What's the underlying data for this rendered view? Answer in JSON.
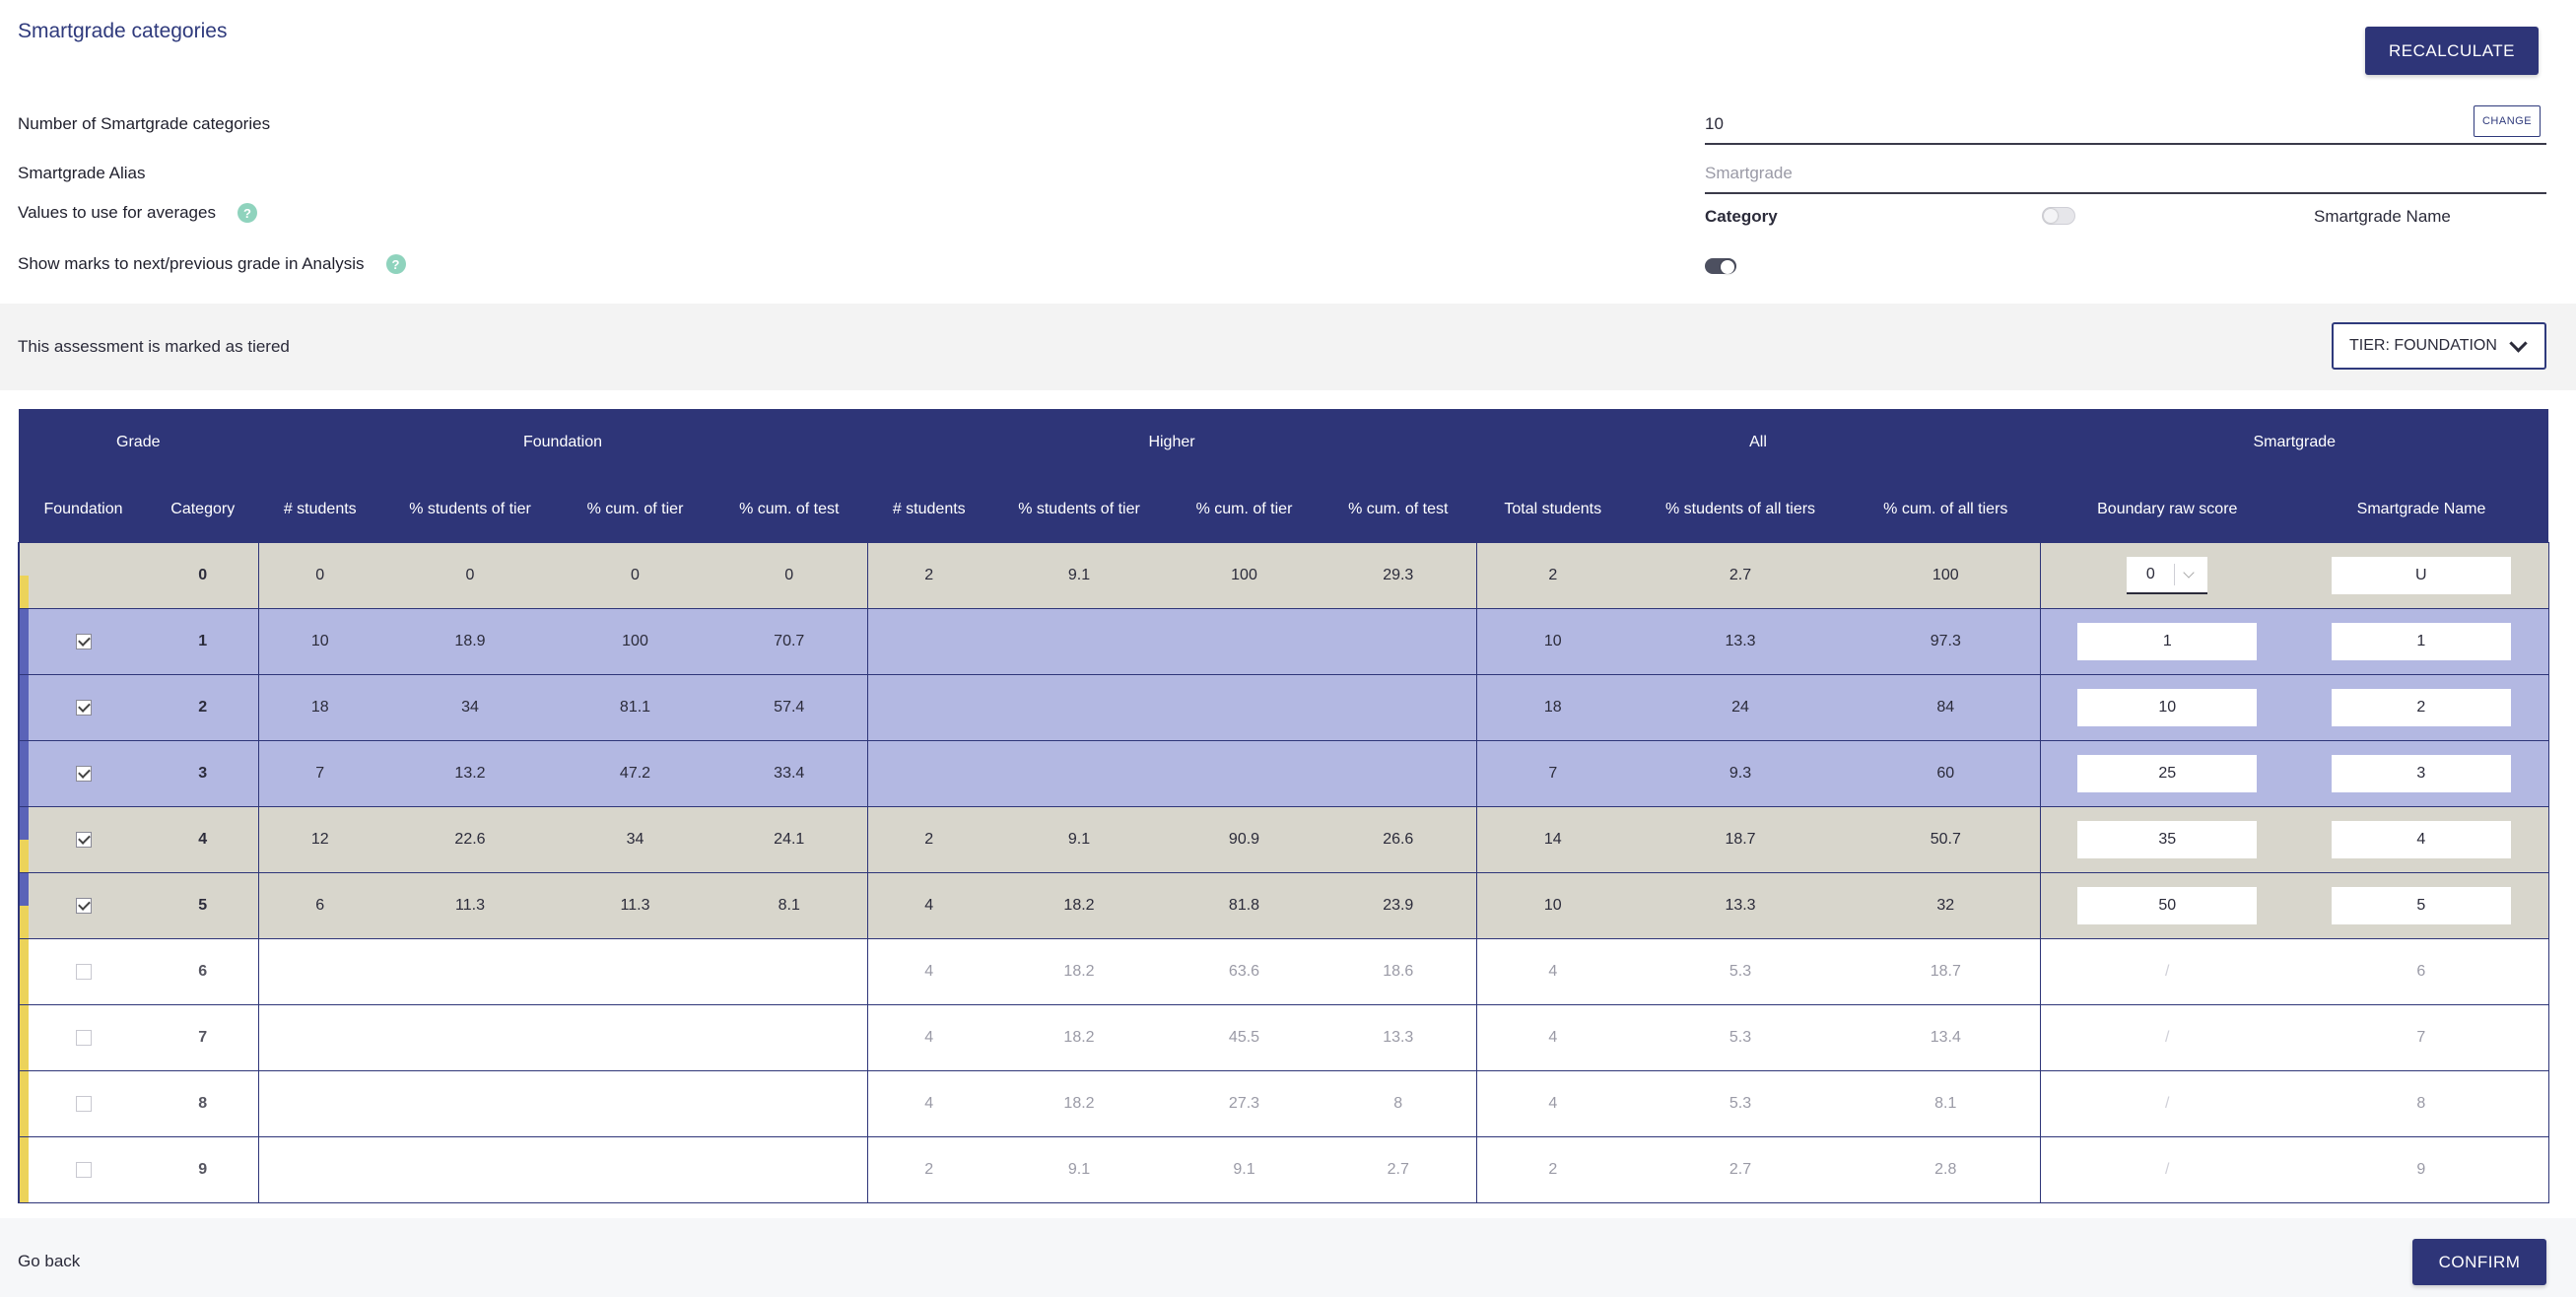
{
  "page": {
    "title": "Smartgrade categories",
    "recalculate_label": "RECALCULATE"
  },
  "settings": {
    "num_categories_label": "Number of Smartgrade categories",
    "num_categories_value": "10",
    "change_label": "CHANGE",
    "alias_label": "Smartgrade Alias",
    "alias_placeholder": "Smartgrade",
    "averages_label": "Values to use for averages",
    "averages_option_left": "Category",
    "averages_option_right": "Smartgrade Name",
    "averages_toggle_on": false,
    "show_marks_label": "Show marks to next/previous grade in Analysis",
    "show_marks_toggle_on": true,
    "help_glyph": "?"
  },
  "tier": {
    "notice": "This assessment is marked as tiered",
    "select_label": "TIER: FOUNDATION"
  },
  "table": {
    "groups": [
      "Grade",
      "Foundation",
      "Higher",
      "All",
      "Smartgrade"
    ],
    "columns": [
      "Foundation",
      "Category",
      "# students",
      "% students of tier",
      "% cum. of tier",
      "% cum. of test",
      "# students",
      "% students of tier",
      "% cum. of tier",
      "% cum. of test",
      "Total students",
      "% students of all tiers",
      "% cum. of all tiers",
      "Boundary raw score",
      "Smartgrade Name"
    ],
    "rows": [
      {
        "cat": "0",
        "style": "grey",
        "cb": "",
        "f": [
          "0",
          "0",
          "0",
          "0"
        ],
        "h": [
          "2",
          "9.1",
          "100",
          "29.3"
        ],
        "a": [
          "2",
          "2.7",
          "100"
        ],
        "boundary": "0",
        "name": "U"
      },
      {
        "cat": "1",
        "style": "blue",
        "cb": "checked",
        "f": [
          "10",
          "18.9",
          "100",
          "70.7"
        ],
        "h": [
          "",
          "",
          "",
          ""
        ],
        "a": [
          "10",
          "13.3",
          "97.3"
        ],
        "boundary": "1",
        "name": "1"
      },
      {
        "cat": "2",
        "style": "blue",
        "cb": "checked",
        "f": [
          "18",
          "34",
          "81.1",
          "57.4"
        ],
        "h": [
          "",
          "",
          "",
          ""
        ],
        "a": [
          "18",
          "24",
          "84"
        ],
        "boundary": "10",
        "name": "2"
      },
      {
        "cat": "3",
        "style": "blue",
        "cb": "checked",
        "f": [
          "7",
          "13.2",
          "47.2",
          "33.4"
        ],
        "h": [
          "",
          "",
          "",
          ""
        ],
        "a": [
          "7",
          "9.3",
          "60"
        ],
        "boundary": "25",
        "name": "3"
      },
      {
        "cat": "4",
        "style": "grey",
        "cb": "checked",
        "f": [
          "12",
          "22.6",
          "34",
          "24.1"
        ],
        "h": [
          "2",
          "9.1",
          "90.9",
          "26.6"
        ],
        "a": [
          "14",
          "18.7",
          "50.7"
        ],
        "boundary": "35",
        "name": "4"
      },
      {
        "cat": "5",
        "style": "grey",
        "cb": "checked",
        "f": [
          "6",
          "11.3",
          "11.3",
          "8.1"
        ],
        "h": [
          "4",
          "18.2",
          "81.8",
          "23.9"
        ],
        "a": [
          "10",
          "13.3",
          "32"
        ],
        "boundary": "50",
        "name": "5"
      },
      {
        "cat": "6",
        "style": "white",
        "cb": "unchecked",
        "f": [
          "",
          "",
          "",
          ""
        ],
        "h": [
          "4",
          "18.2",
          "63.6",
          "18.6"
        ],
        "a": [
          "4",
          "5.3",
          "18.7"
        ],
        "boundary": "/",
        "name": "6"
      },
      {
        "cat": "7",
        "style": "white",
        "cb": "unchecked",
        "f": [
          "",
          "",
          "",
          ""
        ],
        "h": [
          "4",
          "18.2",
          "45.5",
          "13.3"
        ],
        "a": [
          "4",
          "5.3",
          "13.4"
        ],
        "boundary": "/",
        "name": "7"
      },
      {
        "cat": "8",
        "style": "white",
        "cb": "unchecked",
        "f": [
          "",
          "",
          "",
          ""
        ],
        "h": [
          "4",
          "18.2",
          "27.3",
          "8"
        ],
        "a": [
          "4",
          "5.3",
          "8.1"
        ],
        "boundary": "/",
        "name": "8"
      },
      {
        "cat": "9",
        "style": "white",
        "cb": "unchecked",
        "f": [
          "",
          "",
          "",
          ""
        ],
        "h": [
          "2",
          "9.1",
          "9.1",
          "2.7"
        ],
        "a": [
          "2",
          "2.7",
          "2.8"
        ],
        "boundary": "/",
        "name": "9"
      }
    ]
  },
  "footer": {
    "go_back_label": "Go back",
    "confirm_label": "CONFIRM"
  },
  "colors": {
    "header_bg": "#2e3578",
    "row_grey": "#d8d6cc",
    "row_blue": "#b3b8e2",
    "strip_blue": "#5a63b8",
    "strip_yellow": "#ecd35a",
    "help_icon": "#8fd3bd"
  }
}
